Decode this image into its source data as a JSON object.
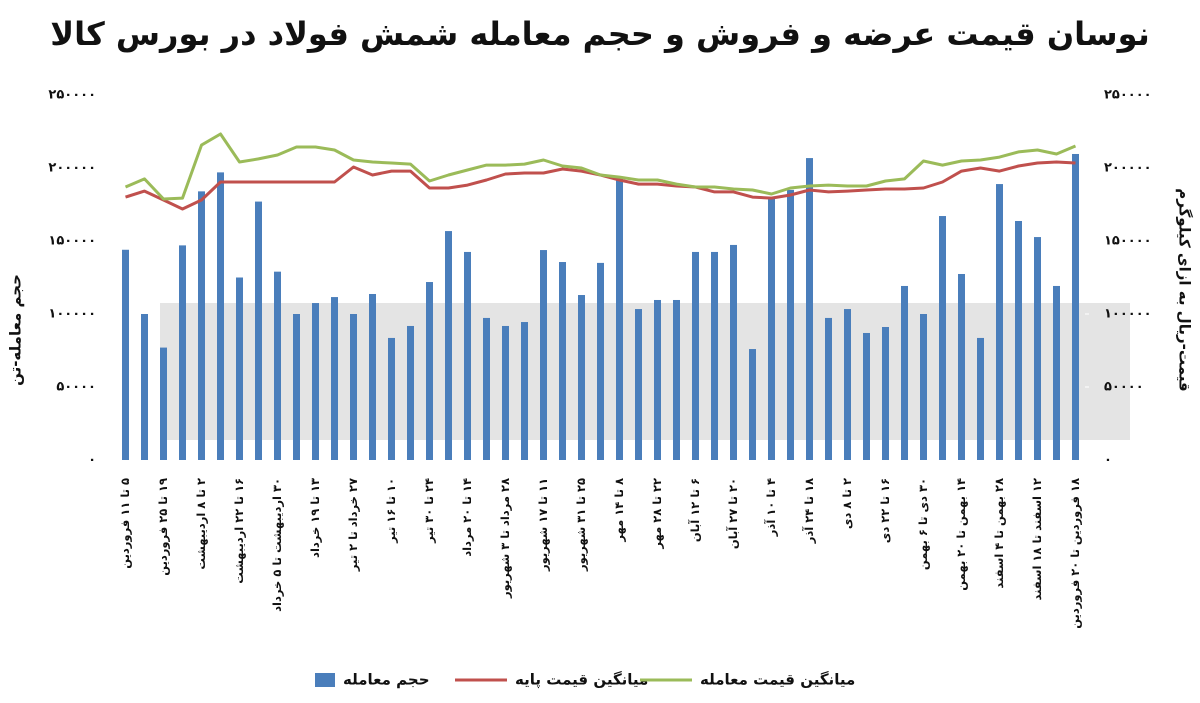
{
  "chart_data": {
    "type": "combo",
    "title": "نوسان قیمت عرضه و فروش و حجم معامله شمش فولاد در بورس کالا",
    "y_label": "حجم معامله-تن",
    "y2_label": "قیمت-ریال به ازای کیلوگرم",
    "categories": [
      "۵ تا ۱۱ فروردین",
      null,
      "۱۹ تا ۲۵ فروردین",
      null,
      "۲ تا ۸ اردیبهشت",
      null,
      "۱۶ تا ۲۲ اردیبهشت",
      null,
      "۳۰ اردیبهشت تا ۵ خرداد",
      null,
      "۱۳ تا ۱۹ خرداد",
      null,
      "۲۷ خرداد تا ۲ تیر",
      null,
      "۱۰ تا ۱۶ تیر",
      null,
      "۲۴ تا ۳۰ تیر",
      null,
      "۱۴ تا ۲۰ مرداد",
      null,
      "۲۸ مرداد تا ۳ شهریور",
      null,
      "۱۱ تا ۱۷ شهریور",
      null,
      "۲۵ تا ۳۱ شهریور",
      null,
      "۸ تا ۱۴ مهر",
      null,
      "۲۲ تا ۲۸ مهر",
      null,
      "۶ تا ۱۲ آبان",
      null,
      "۲۰ تا ۲۷ آبان",
      null,
      "۴ تا ۱۰ آذر",
      null,
      "۱۸ تا ۲۴ آذر",
      null,
      "۲ تا ۸ دی",
      null,
      "۱۶ تا ۲۲ دی",
      null,
      "۳۰ دی تا ۶ بهمن",
      null,
      "۱۴ بهمن تا ۲۰ بهمن",
      null,
      "۲۸ بهمن تا ۴ اسفند",
      null,
      "۱۲ اسفند تا ۱۸ اسفند",
      null,
      "۱۸ فروردین تا ۲۰ فروردین"
    ],
    "series": [
      {
        "name": "حجم معامله",
        "type": "bar",
        "color": "#4a7ebb",
        "values": [
          144000,
          100000,
          77000,
          147000,
          184000,
          197000,
          125000,
          177000,
          129000,
          100000,
          107500,
          111600,
          100000,
          113700,
          83600,
          91800,
          121900,
          156800,
          142500,
          97300,
          91800,
          94500,
          143800,
          135600,
          113000,
          135000,
          193000,
          103400,
          109600,
          109600,
          142500,
          142500,
          147300,
          76000,
          179500,
          185000,
          206800,
          97300,
          103400,
          87000,
          91100,
          119200,
          100000,
          167100,
          127400,
          83600,
          189000,
          163700,
          152700,
          119200,
          209600
        ]
      },
      {
        "name": "میانگین قیمت پایه",
        "type": "line",
        "axis": "y2",
        "color": "#c0504d",
        "values": [
          180100,
          184200,
          178100,
          171900,
          178100,
          190400,
          190400,
          190400,
          190400,
          190400,
          190400,
          190400,
          200700,
          195200,
          197900,
          197900,
          186300,
          186300,
          188300,
          191800,
          195900,
          196600,
          196600,
          199300,
          197900,
          195200,
          191800,
          189000,
          189000,
          187700,
          187000,
          183600,
          183600,
          180100,
          179400,
          181500,
          184900,
          183600,
          184200,
          184900,
          185600,
          185600,
          186300,
          190400,
          197900,
          200000,
          197900,
          201400,
          203400,
          204100,
          203400
        ]
      },
      {
        "name": "میانگین قیمت معامله",
        "type": "line",
        "axis": "y2",
        "color": "#9bbb59",
        "values": [
          187000,
          192500,
          178800,
          179400,
          215700,
          223300,
          204100,
          206200,
          208900,
          214400,
          214400,
          212300,
          205500,
          204100,
          203400,
          202700,
          191100,
          195200,
          198600,
          202000,
          202000,
          202700,
          205500,
          201400,
          200000,
          195200,
          193800,
          191800,
          191800,
          189000,
          187000,
          187000,
          185600,
          184900,
          182200,
          186300,
          187700,
          188300,
          187700,
          187700,
          191100,
          192500,
          204800,
          202000,
          204800,
          205500,
          207500,
          211000,
          212300,
          209600,
          215100
        ]
      }
    ],
    "ylim": [
      0,
      250000
    ],
    "yticks": [
      {
        "value": 0,
        "label": "۰"
      },
      {
        "value": 50000,
        "label": "۵۰۰۰۰"
      },
      {
        "value": 100000,
        "label": "۱۰۰۰۰۰"
      },
      {
        "value": 150000,
        "label": "۱۵۰۰۰۰"
      },
      {
        "value": 200000,
        "label": "۲۰۰۰۰۰"
      },
      {
        "value": 250000,
        "label": "۲۵۰۰۰۰"
      }
    ],
    "y2lim": [
      0,
      250000
    ],
    "y2ticks": [
      {
        "value": 0,
        "label": "۰"
      },
      {
        "value": 50000,
        "label": "۵۰۰۰۰"
      },
      {
        "value": 100000,
        "label": "۱۰۰۰۰۰"
      },
      {
        "value": 150000,
        "label": "۱۵۰۰۰۰"
      },
      {
        "value": 200000,
        "label": "۲۰۰۰۰۰"
      },
      {
        "value": 250000,
        "label": "۲۵۰۰۰۰"
      }
    ],
    "grid": false
  }
}
